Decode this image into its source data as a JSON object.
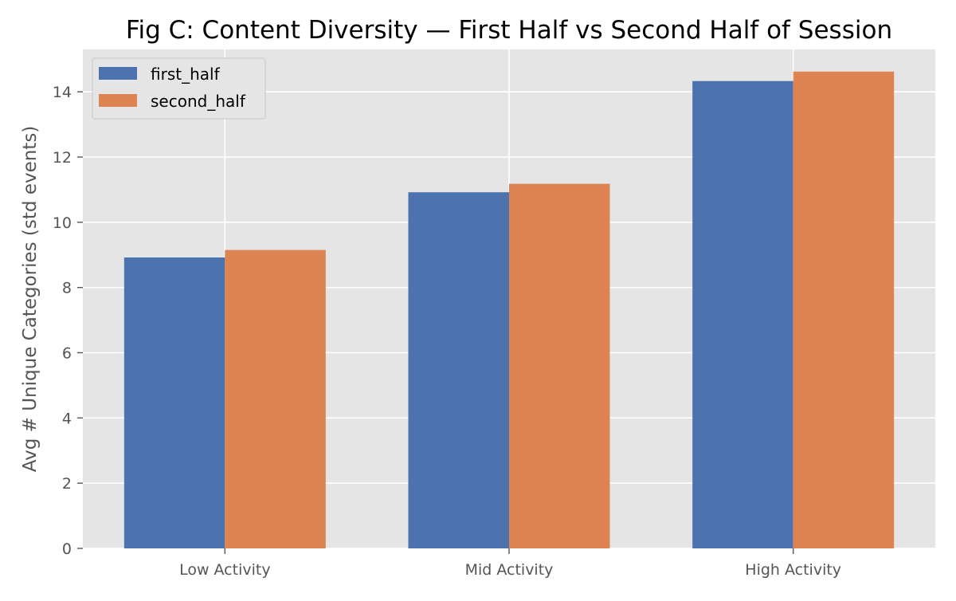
{
  "chart_data": {
    "type": "bar",
    "title": "Fig C: Content Diversity — First Half vs Second Half of Session",
    "xlabel": "",
    "ylabel": "Avg # Unique Categories (std events)",
    "categories": [
      "Low Activity",
      "Mid Activity",
      "High Activity"
    ],
    "series": [
      {
        "name": "first_half",
        "color": "#4c72b0",
        "values": [
          8.92,
          10.92,
          14.33
        ]
      },
      {
        "name": "second_half",
        "color": "#dd8452",
        "values": [
          9.15,
          11.18,
          14.62
        ]
      }
    ],
    "ylim": [
      0,
      15.3
    ],
    "yticks": [
      0,
      2,
      4,
      6,
      8,
      10,
      12,
      14
    ],
    "grid": true,
    "legend_position": "top-left",
    "style": {
      "plot_background": "#e5e5e5",
      "grid_color": "#ffffff",
      "axis_text_color": "#555555",
      "title_color": "#000000"
    }
  }
}
